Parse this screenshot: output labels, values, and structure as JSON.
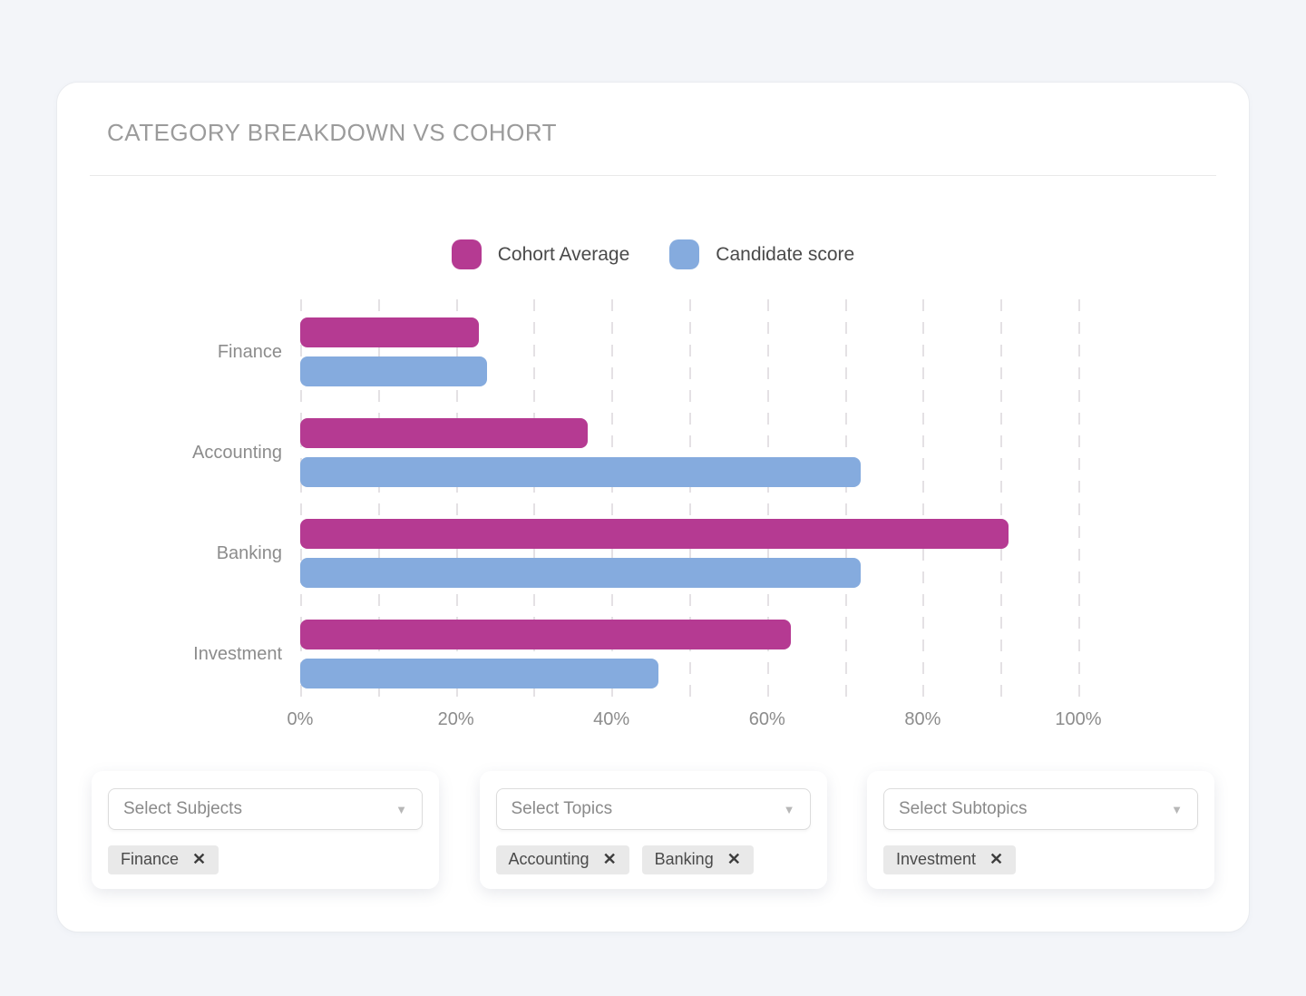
{
  "panel": {
    "title": "CATEGORY BREAKDOWN VS COHORT"
  },
  "chart_data": {
    "type": "bar",
    "orientation": "horizontal",
    "title": "CATEGORY BREAKDOWN VS COHORT",
    "categories": [
      "Finance",
      "Accounting",
      "Banking",
      "Investment"
    ],
    "series": [
      {
        "name": "Cohort Average",
        "color": "#b53a92",
        "values": [
          23,
          37,
          91,
          63
        ]
      },
      {
        "name": "Candidate score",
        "color": "#85abde",
        "values": [
          24,
          72,
          72,
          46
        ]
      }
    ],
    "xlabel": "",
    "ylabel": "",
    "xlim": [
      0,
      100
    ],
    "x_ticks": [
      "0%",
      "20%",
      "40%",
      "60%",
      "80%",
      "100%"
    ],
    "x_tick_values": [
      0,
      20,
      40,
      60,
      80,
      100
    ],
    "grid": "vertical dashed gridlines every 10%",
    "legend_position": "top-center"
  },
  "filters": [
    {
      "name": "subjects",
      "placeholder": "Select Subjects",
      "tags": [
        "Finance"
      ]
    },
    {
      "name": "topics",
      "placeholder": "Select Topics",
      "tags": [
        "Accounting",
        "Banking"
      ]
    },
    {
      "name": "subtopics",
      "placeholder": "Select Subtopics",
      "tags": [
        "Investment"
      ]
    }
  ],
  "icons": {
    "dropdown_arrow": "▼",
    "remove": "✕"
  }
}
